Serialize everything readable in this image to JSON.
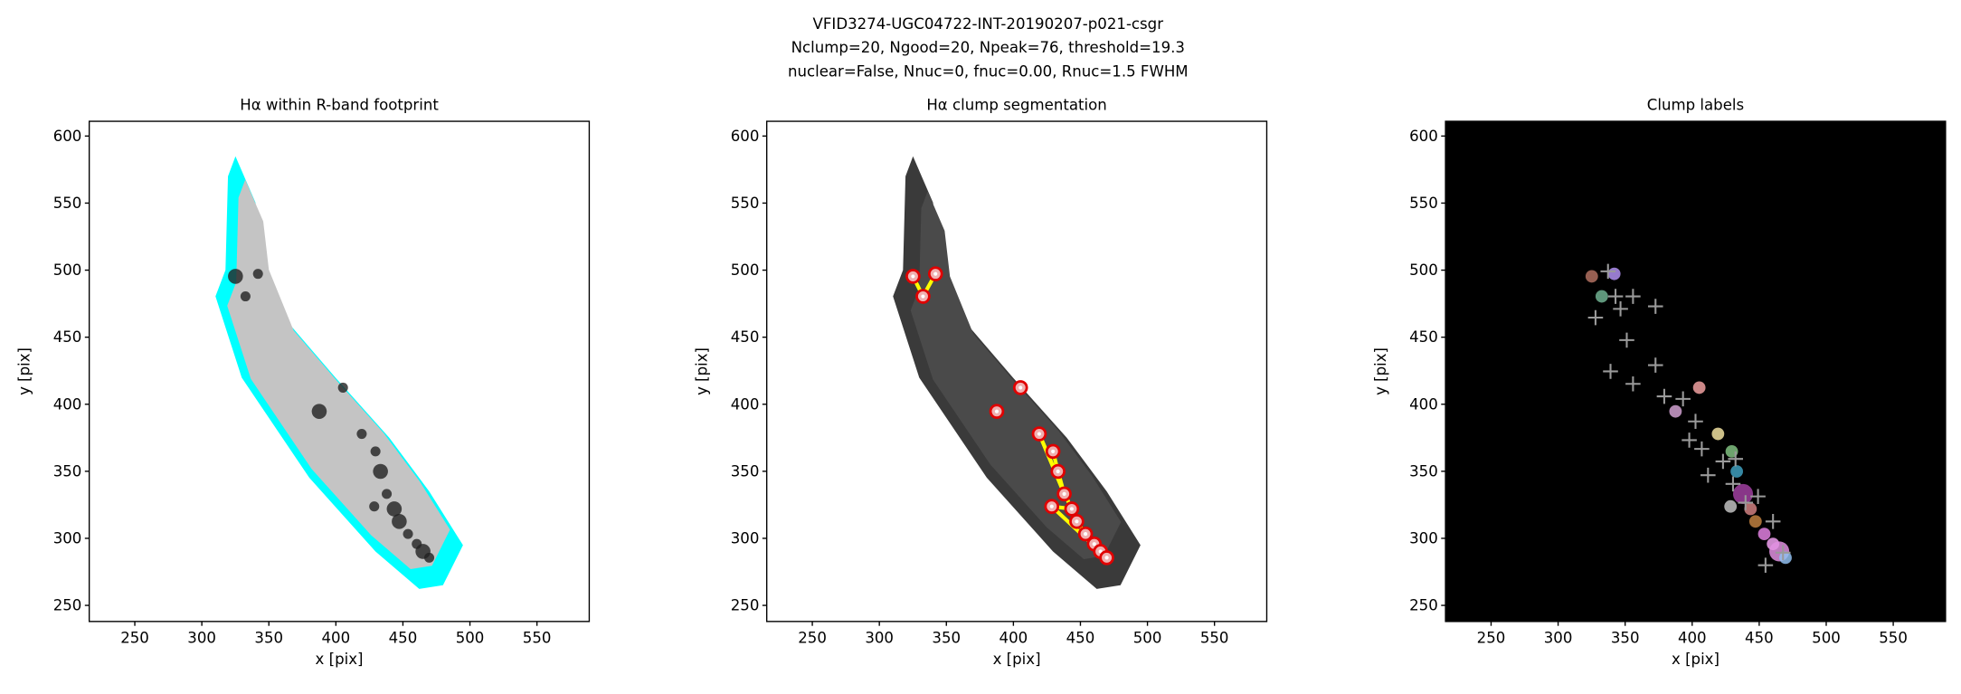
{
  "suptitle": [
    "VFID3274-UGC04722-INT-20190207-p021-csgr",
    "Nclump=20, Ngood=20, Npeak=76, threshold=19.3",
    "nuclear=False, Nnuc=0, fnuc=0.00, Rnuc=1.5 FWHM"
  ],
  "chart_data": [
    {
      "type": "image",
      "title": "Hα within R-band footprint",
      "xlabel": "x [pix]",
      "ylabel": "y [pix]",
      "xlim": [
        216,
        589
      ],
      "ylim": [
        238,
        611
      ],
      "xticks": [
        250,
        300,
        350,
        400,
        450,
        500,
        550
      ],
      "yticks": [
        250,
        300,
        350,
        400,
        450,
        500,
        550,
        600
      ],
      "background": "#ffffff"
    },
    {
      "type": "image",
      "title": "Hα clump segmentation",
      "xlabel": "x [pix]",
      "ylabel": "y [pix]",
      "xlim": [
        216,
        589
      ],
      "ylim": [
        238,
        611
      ],
      "xticks": [
        250,
        300,
        350,
        400,
        450,
        500,
        550
      ],
      "yticks": [
        250,
        300,
        350,
        400,
        450,
        500,
        550,
        600
      ],
      "background": "#ffffff"
    },
    {
      "type": "image",
      "title": "Clump labels",
      "xlabel": "x [pix]",
      "ylabel": "y [pix]",
      "xlim": [
        216,
        589
      ],
      "ylim": [
        238,
        611
      ],
      "xticks": [
        250,
        300,
        350,
        400,
        450,
        500,
        550
      ],
      "yticks": [
        250,
        300,
        350,
        400,
        450,
        500,
        550,
        600
      ],
      "background": "#000000"
    }
  ]
}
